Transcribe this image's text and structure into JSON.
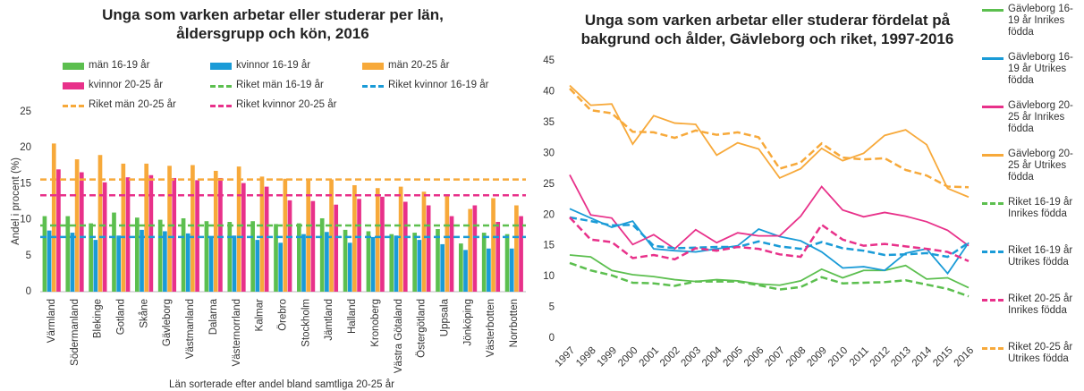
{
  "chart_data": [
    {
      "type": "bar",
      "title": "Unga som varken arbetar eller studerar per län, åldersgrupp och kön, 2016",
      "ylabel": "Andel i procent (%)",
      "xlabel": "Län sorterade efter andel bland samtliga 20-25 år",
      "categories": [
        "Värmland",
        "Södermanland",
        "Blekinge",
        "Gotland",
        "Skåne",
        "Gävleborg",
        "Västmanland",
        "Dalarna",
        "Västernorrland",
        "Kalmar",
        "Örebro",
        "Stockholm",
        "Jämtland",
        "Halland",
        "Kronoberg",
        "Västra Götaland",
        "Östergötland",
        "Uppsala",
        "Jönköping",
        "Västerbotten",
        "Norrbotten"
      ],
      "series": [
        {
          "name": "män 16-19 år",
          "color": "#5cbf4f",
          "values": [
            10.5,
            10.5,
            9.5,
            11,
            10.3,
            10,
            10.2,
            9.8,
            9.7,
            9.8,
            9.4,
            9.5,
            10.2,
            8.6,
            8.4,
            8,
            8.2,
            8.7,
            6.7,
            8.2,
            8
          ]
        },
        {
          "name": "kvinnor 16-19 år",
          "color": "#1a9bd7",
          "values": [
            8.5,
            8.2,
            7.2,
            7.8,
            8.6,
            8.4,
            8.1,
            7.5,
            7.8,
            7.2,
            6.8,
            8,
            8.3,
            6.8,
            7.6,
            7.8,
            7.2,
            6.6,
            5.8,
            6,
            6
          ]
        },
        {
          "name": "män 20-25 år",
          "color": "#f7a93a",
          "values": [
            20.6,
            18.4,
            19,
            17.8,
            17.8,
            17.5,
            17.6,
            16.8,
            17.4,
            16,
            15.7,
            15.6,
            15.6,
            14.8,
            14.4,
            14.6,
            13.9,
            13.4,
            11.5,
            13,
            12
          ]
        },
        {
          "name": "kvinnor 20-25 år",
          "color": "#e8318a",
          "values": [
            17,
            16.6,
            15.2,
            15.9,
            16.2,
            15.8,
            15.5,
            15.8,
            15.1,
            14.6,
            12.7,
            12.6,
            12.1,
            12.9,
            13.2,
            12.5,
            12,
            10.5,
            12,
            9.7,
            10.5
          ]
        }
      ],
      "reference_lines": [
        {
          "name": "Riket män 16-19 år",
          "color": "#5cbf4f",
          "value": 9.2
        },
        {
          "name": "Riket kvinnor 16-19 år",
          "color": "#1a9bd7",
          "value": 7.6
        },
        {
          "name": "Riket män 20-25 år",
          "color": "#f7a93a",
          "value": 15.6
        },
        {
          "name": "Riket kvinnor 20-25 år",
          "color": "#e8318a",
          "value": 13.4
        }
      ],
      "ylim": [
        0,
        25
      ],
      "yticks": [
        0,
        5,
        10,
        15,
        20,
        25
      ],
      "grid": false
    },
    {
      "type": "line",
      "title": "Unga som varken arbetar eller studerar fördelat på bakgrund och ålder, Gävleborg och riket, 1997-2016",
      "categories": [
        "1997",
        "1998",
        "1999",
        "2000",
        "2001",
        "2002",
        "2003",
        "2004",
        "2005",
        "2006",
        "2007",
        "2008",
        "2009",
        "2010",
        "2011",
        "2012",
        "2013",
        "2014",
        "2015",
        "2016"
      ],
      "series": [
        {
          "name": "Gävleborg 16-19 år Inrikes födda",
          "color": "#5cbf4f",
          "style": "solid",
          "values": [
            13.5,
            13.2,
            11,
            10.3,
            10,
            9.5,
            9.2,
            9.5,
            9.3,
            8.8,
            8.6,
            9.3,
            11.2,
            9.8,
            11,
            11,
            11.8,
            9.6,
            9.8,
            8.2
          ]
        },
        {
          "name": "Gävleborg 16-19 år Utrikes födda",
          "color": "#1a9bd7",
          "style": "solid",
          "values": [
            21,
            19.5,
            18,
            19,
            14.5,
            14.2,
            14,
            14.5,
            15,
            17.7,
            16.5,
            15.8,
            14,
            11.4,
            11.6,
            11,
            13.8,
            14.5,
            10.5,
            15.5
          ]
        },
        {
          "name": "Gävleborg 20-25 år Inrikes födda",
          "color": "#e8318a",
          "style": "solid",
          "values": [
            26.5,
            20,
            19.5,
            15.2,
            16.8,
            14.5,
            17.6,
            15.5,
            17.1,
            16.6,
            16.6,
            19.8,
            24.6,
            20.8,
            19.7,
            20.4,
            19.8,
            18.9,
            17.5,
            15
          ]
        },
        {
          "name": "Gävleborg 20-25 år Utrikes födda",
          "color": "#f7a93a",
          "style": "solid",
          "values": [
            41,
            37.8,
            38,
            31.5,
            36.1,
            34.9,
            34.7,
            29.7,
            31.7,
            30.7,
            26,
            27.5,
            30.8,
            28.8,
            30,
            32.9,
            33.8,
            31.4,
            24.3,
            22.9
          ]
        },
        {
          "name": "Riket 16-19 år Inrikes födda",
          "color": "#5cbf4f",
          "style": "dashed",
          "values": [
            12.2,
            11,
            10.2,
            9,
            8.9,
            8.5,
            9.2,
            9.2,
            9.2,
            8.6,
            7.9,
            8.3,
            9.9,
            8.9,
            9,
            9.1,
            9.4,
            8.7,
            8,
            6.8
          ]
        },
        {
          "name": "Riket 16-19 år Utrikes födda",
          "color": "#1a9bd7",
          "style": "dashed",
          "values": [
            19.6,
            19,
            18.3,
            18.4,
            15,
            14.6,
            14.7,
            14.8,
            14.8,
            15.7,
            14.9,
            14.5,
            15.6,
            14.6,
            14.2,
            13.5,
            13.6,
            13.8,
            13.2,
            15.5
          ]
        },
        {
          "name": "Riket 20-25 år Inrikes födda",
          "color": "#e8318a",
          "style": "dashed",
          "values": [
            19.6,
            16,
            15.6,
            13,
            13.5,
            12.8,
            14.6,
            14.2,
            14.8,
            14.5,
            13.6,
            13.2,
            18.4,
            16,
            15,
            15.3,
            14.9,
            14.5,
            14,
            12.5
          ]
        },
        {
          "name": "Riket 20-25 år Utrikes födda",
          "color": "#f7a93a",
          "style": "dashed",
          "values": [
            40.5,
            37,
            36.5,
            33.5,
            33.4,
            32.5,
            33.7,
            33,
            33.4,
            32.6,
            27.5,
            28.5,
            31.6,
            29.3,
            29,
            29.2,
            27.3,
            26.4,
            24.6,
            24.5
          ]
        }
      ],
      "ylim": [
        0,
        45
      ],
      "yticks": [
        0,
        5,
        10,
        15,
        20,
        25,
        30,
        35,
        40,
        45
      ],
      "grid": false
    }
  ]
}
